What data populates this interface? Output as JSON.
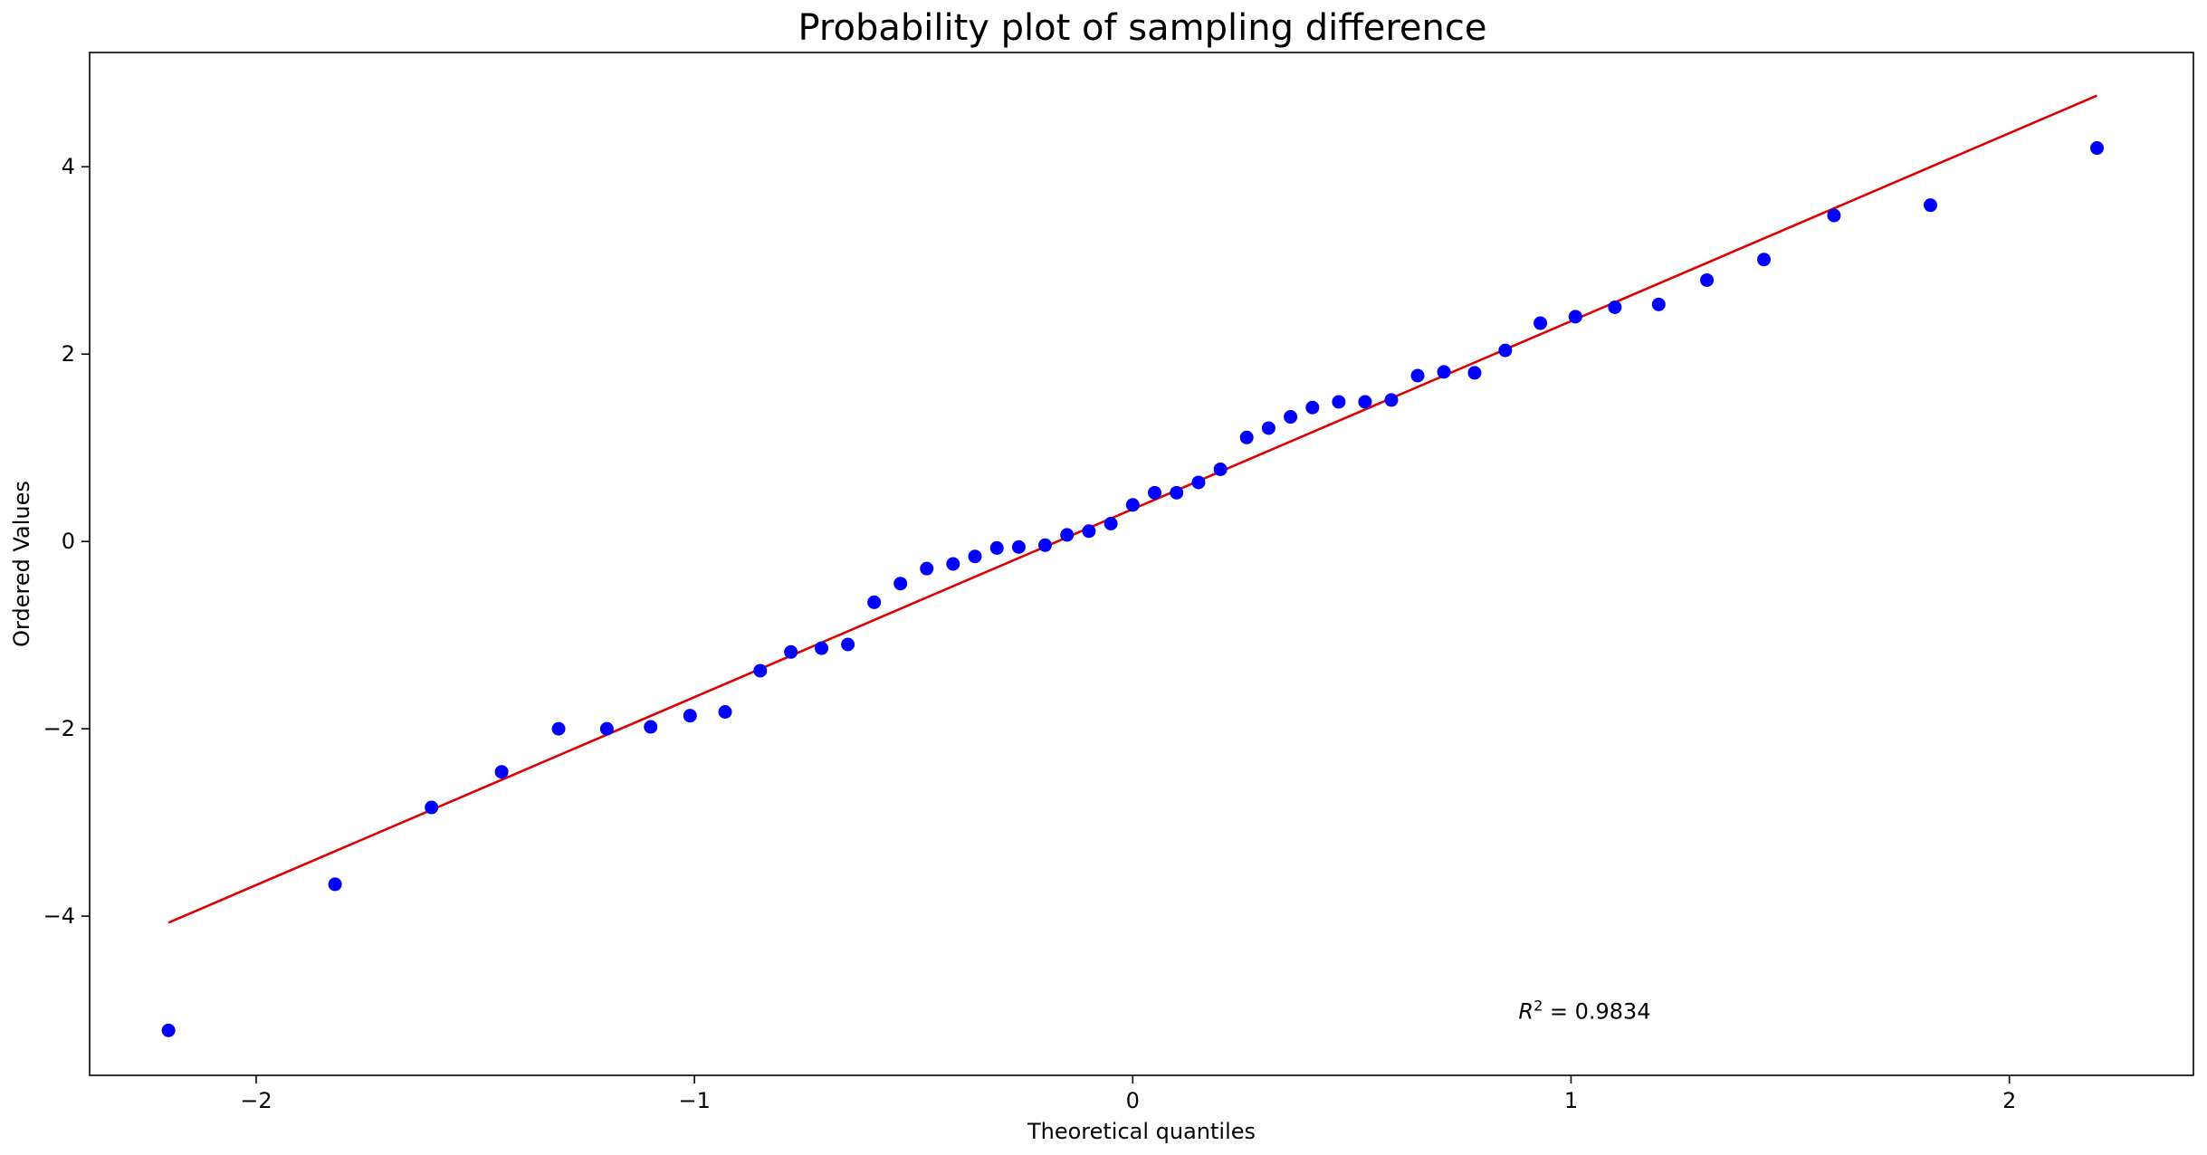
{
  "chart_data": {
    "type": "scatter",
    "title": "Probability plot of sampling difference",
    "xlabel": "Theoretical quantiles",
    "ylabel": "Ordered Values",
    "xlim": [
      -2.38,
      2.42
    ],
    "ylim": [
      -5.7,
      5.22
    ],
    "xticks": [
      {
        "value": -2,
        "label": "−2"
      },
      {
        "value": -1,
        "label": "−1"
      },
      {
        "value": 0,
        "label": "0"
      },
      {
        "value": 1,
        "label": "1"
      },
      {
        "value": 2,
        "label": "2"
      }
    ],
    "yticks": [
      {
        "value": -4,
        "label": "−4"
      },
      {
        "value": -2,
        "label": "−2"
      },
      {
        "value": 0,
        "label": "0"
      },
      {
        "value": 2,
        "label": "2"
      },
      {
        "value": 4,
        "label": "4"
      }
    ],
    "grid": false,
    "series": [
      {
        "kind": "points",
        "color": "#0000ff",
        "x": [
          -2.2,
          -1.82,
          -1.6,
          -1.44,
          -1.31,
          -1.2,
          -1.1,
          -1.01,
          -0.93,
          -0.85,
          -0.78,
          -0.71,
          -0.65,
          -0.59,
          -0.53,
          -0.47,
          -0.41,
          -0.36,
          -0.31,
          -0.26,
          -0.2,
          -0.15,
          -0.1,
          -0.05,
          0.0,
          0.05,
          0.1,
          0.15,
          0.2,
          0.26,
          0.31,
          0.36,
          0.41,
          0.47,
          0.53,
          0.59,
          0.65,
          0.71,
          0.78,
          0.85,
          0.93,
          1.01,
          1.1,
          1.2,
          1.31,
          1.44,
          1.6,
          1.82,
          2.2
        ],
        "y": [
          -5.22,
          -3.66,
          -2.84,
          -2.46,
          -2.0,
          -2.0,
          -1.98,
          -1.86,
          -1.82,
          -1.38,
          -1.18,
          -1.14,
          -1.1,
          -0.65,
          -0.45,
          -0.29,
          -0.24,
          -0.16,
          -0.07,
          -0.06,
          -0.04,
          0.07,
          0.11,
          0.19,
          0.39,
          0.52,
          0.52,
          0.63,
          0.77,
          1.11,
          1.21,
          1.33,
          1.43,
          1.49,
          1.49,
          1.51,
          1.77,
          1.81,
          1.8,
          2.04,
          2.33,
          2.4,
          2.5,
          2.53,
          2.79,
          3.01,
          3.48,
          3.59,
          4.2
        ]
      },
      {
        "kind": "fit-line",
        "color": "#dd0000",
        "x": [
          -2.2,
          2.2
        ],
        "y": [
          -4.07,
          4.76
        ]
      }
    ],
    "annotation": {
      "text_base": "R",
      "text_sup": "2",
      "text_rest": " = 0.9834",
      "x": 0.88,
      "y": -5.02
    }
  }
}
